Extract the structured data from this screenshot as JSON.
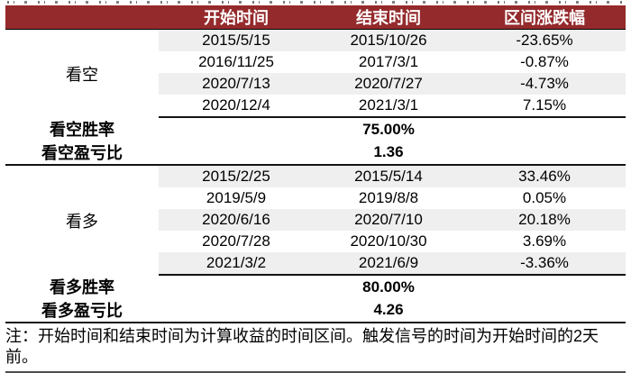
{
  "colors": {
    "header_bg": "#942A2C",
    "zebra": "#EFEFEF"
  },
  "table": {
    "headers": [
      "开始时间",
      "结束时间",
      "区间涨跌幅"
    ],
    "groups": [
      {
        "label": "看空",
        "rows": [
          {
            "start": "2015/5/15",
            "end": "2015/10/26",
            "change": "-23.65%"
          },
          {
            "start": "2016/11/25",
            "end": "2017/3/1",
            "change": "-0.87%"
          },
          {
            "start": "2020/7/13",
            "end": "2020/7/27",
            "change": "-4.73%"
          },
          {
            "start": "2020/12/4",
            "end": "2021/3/1",
            "change": "7.15%"
          }
        ],
        "summary": [
          {
            "label": "看空胜率",
            "value": "75.00%"
          },
          {
            "label": "看空盈亏比",
            "value": "1.36"
          }
        ]
      },
      {
        "label": "看多",
        "rows": [
          {
            "start": "2015/2/25",
            "end": "2015/5/14",
            "change": "33.46%"
          },
          {
            "start": "2019/5/9",
            "end": "2019/8/8",
            "change": "0.05%"
          },
          {
            "start": "2020/6/16",
            "end": "2020/7/10",
            "change": "20.18%"
          },
          {
            "start": "2020/7/28",
            "end": "2020/10/30",
            "change": "3.69%"
          },
          {
            "start": "2021/3/2",
            "end": "2021/6/9",
            "change": "-3.36%"
          }
        ],
        "summary": [
          {
            "label": "看多胜率",
            "value": "80.00%"
          },
          {
            "label": "看多盈亏比",
            "value": "4.26"
          }
        ]
      }
    ]
  },
  "note": "注：开始时间和结束时间为计算收益的时间区间。触发信号的时间为开始时间的2天前。"
}
